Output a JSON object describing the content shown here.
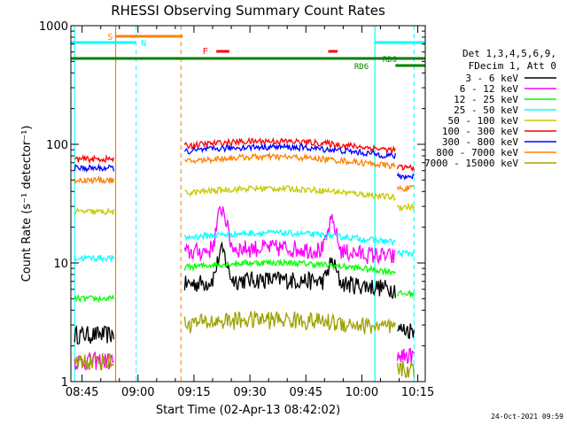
{
  "chart_data": {
    "type": "line",
    "title": "RHESSI Observing Summary Count Rates",
    "xlabel": "Start Time (02-Apr-13 08:42:02)",
    "ylabel": "Count Rate (s⁻¹ detector⁻¹)",
    "yscale": "log",
    "ylim": [
      1,
      1000
    ],
    "y_ticks": [
      {
        "value": 1,
        "label": "1"
      },
      {
        "value": 10,
        "label": "10"
      },
      {
        "value": 100,
        "label": "100"
      },
      {
        "value": 1000,
        "label": "1000"
      }
    ],
    "x_ticks": [
      "08:45",
      "09:00",
      "09:15",
      "09:30",
      "09:45",
      "10:00",
      "10:15"
    ],
    "grid": false,
    "legend_position": "right",
    "legend_header": [
      "Det 1,3,4,5,6,9,",
      "FDecim 1, Att 0"
    ],
    "series": [
      {
        "name": "3 - 6 keV",
        "color": "#000000",
        "pre": 2.5,
        "main": 6.5,
        "flare": 12
      },
      {
        "name": "6 - 12 keV",
        "color": "#ff00ff",
        "pre": 1.5,
        "main": 12,
        "flare": 28
      },
      {
        "name": "12 - 25 keV",
        "color": "#00ff00",
        "pre": 5,
        "main": 9,
        "flare": 9
      },
      {
        "name": "25 - 50 keV",
        "color": "#00ffff",
        "pre": 11,
        "main": 16,
        "flare": 16
      },
      {
        "name": "50 - 100 keV",
        "color": "#c8c800",
        "pre": 27,
        "main": 38,
        "flare": 38
      },
      {
        "name": "100 - 300 keV",
        "color": "#ff0000",
        "pre": 75,
        "main": 95,
        "flare": 95
      },
      {
        "name": "300 - 800 keV",
        "color": "#0000ff",
        "pre": 63,
        "main": 85,
        "flare": 85
      },
      {
        "name": "800 - 7000 keV",
        "color": "#ff8000",
        "pre": 50,
        "main": 70,
        "flare": 70
      },
      {
        "name": "7000 - 15000 keV",
        "color": "#a0a000",
        "pre": 1.5,
        "main": 3,
        "flare": 3
      }
    ],
    "flag_bars": [
      {
        "label": "S",
        "color": "#ff8000"
      },
      {
        "label": "N",
        "color": "#00ffff"
      },
      {
        "label": "F",
        "color": "#ff0000"
      },
      {
        "label": "RD0",
        "color": "#008000"
      },
      {
        "label": "RD6",
        "color": "#008000"
      }
    ]
  },
  "footer": {
    "timestamp": "24-Oct-2021 09:59"
  }
}
